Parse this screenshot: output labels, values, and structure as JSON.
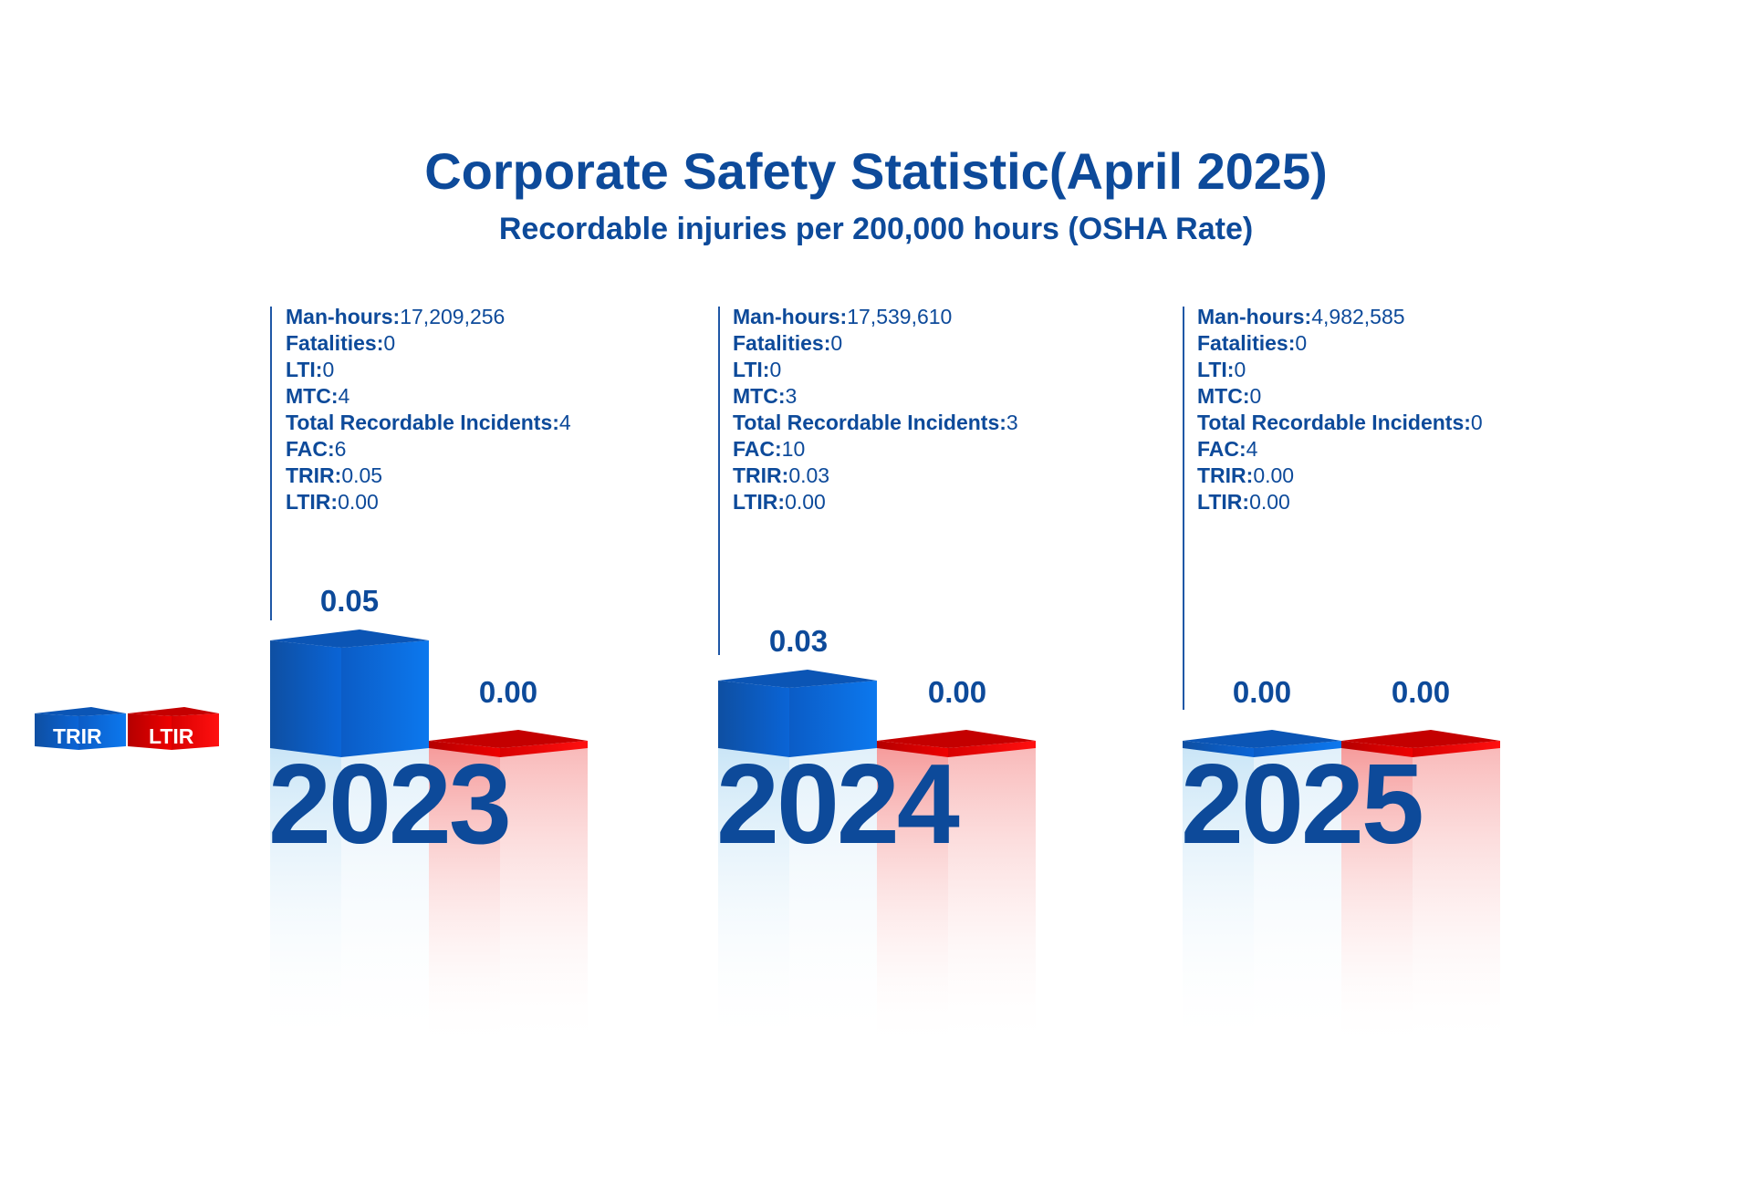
{
  "title": "Corporate Safety Statistic(April 2025)",
  "subtitle": "Recordable injuries per 200,000 hours (OSHA Rate)",
  "colors": {
    "primary": "#0d4a9a",
    "trir": "#0a64d6",
    "ltir": "#e00000"
  },
  "legend": {
    "trir": "TRIR",
    "ltir": "LTIR"
  },
  "years": [
    {
      "year": "2023",
      "stats": [
        {
          "label": "Man-hours:",
          "value": "17,209,256"
        },
        {
          "label": "Fatalities:",
          "value": "0"
        },
        {
          "label": "LTI:",
          "value": "0"
        },
        {
          "label": "MTC:",
          "value": "4"
        },
        {
          "label": "Total Recordable Incidents:",
          "value": "4"
        },
        {
          "label": "FAC:",
          "value": "6"
        },
        {
          "label": "TRIR:",
          "value": "0.05"
        },
        {
          "label": "LTIR:",
          "value": "0.00"
        }
      ],
      "trir_label": "0.05",
      "ltir_label": "0.00"
    },
    {
      "year": "2024",
      "stats": [
        {
          "label": "Man-hours:",
          "value": "17,539,610"
        },
        {
          "label": "Fatalities:",
          "value": "0"
        },
        {
          "label": "LTI:",
          "value": "0"
        },
        {
          "label": "MTC:",
          "value": "3"
        },
        {
          "label": "Total Recordable Incidents:",
          "value": "3"
        },
        {
          "label": "FAC:",
          "value": "10"
        },
        {
          "label": "TRIR:",
          "value": "0.03"
        },
        {
          "label": "LTIR:",
          "value": "0.00"
        }
      ],
      "trir_label": "0.03",
      "ltir_label": "0.00"
    },
    {
      "year": "2025",
      "stats": [
        {
          "label": "Man-hours:",
          "value": "4,982,585"
        },
        {
          "label": "Fatalities:",
          "value": "0"
        },
        {
          "label": "LTI:",
          "value": "0"
        },
        {
          "label": "MTC:",
          "value": "0"
        },
        {
          "label": "Total Recordable Incidents:",
          "value": "0"
        },
        {
          "label": "FAC:",
          "value": "4"
        },
        {
          "label": "TRIR:",
          "value": "0.00"
        },
        {
          "label": "LTIR:",
          "value": "0.00"
        }
      ],
      "trir_label": "0.00",
      "ltir_label": "0.00"
    }
  ],
  "chart_data": {
    "type": "bar",
    "title": "Corporate Safety Statistic(April 2025)",
    "subtitle": "Recordable injuries per 200,000 hours (OSHA Rate)",
    "categories": [
      "2023",
      "2024",
      "2025"
    ],
    "series": [
      {
        "name": "TRIR",
        "values": [
          0.05,
          0.03,
          0.0
        ]
      },
      {
        "name": "LTIR",
        "values": [
          0.0,
          0.0,
          0.0
        ]
      }
    ],
    "ylim": [
      0,
      0.05
    ],
    "legend": "left"
  }
}
